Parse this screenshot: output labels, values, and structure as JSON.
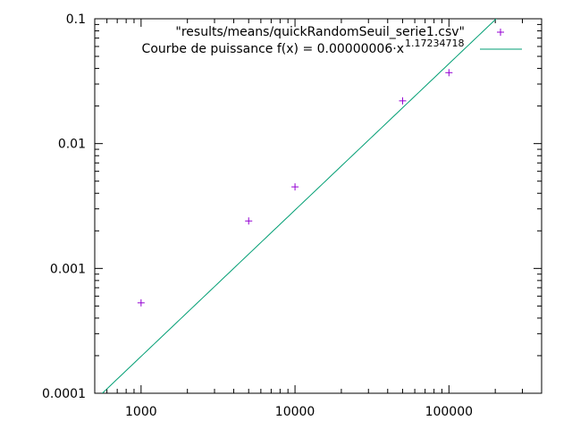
{
  "chart_data": {
    "type": "scatter",
    "title": "",
    "xlabel": "",
    "ylabel": "",
    "x_scale": "log",
    "y_scale": "log",
    "xlim": [
      500,
      400000
    ],
    "ylim": [
      0.0001,
      0.1
    ],
    "grid": false,
    "legend_position": "top-right",
    "x_ticks": [
      {
        "value": 1000,
        "label": "1000"
      },
      {
        "value": 10000,
        "label": "10000"
      },
      {
        "value": 100000,
        "label": "100000"
      }
    ],
    "y_ticks": [
      {
        "value": 0.0001,
        "label": "0.0001"
      },
      {
        "value": 0.001,
        "label": "0.001"
      },
      {
        "value": 0.01,
        "label": "0.01"
      },
      {
        "value": 0.1,
        "label": "0.1"
      }
    ],
    "series": [
      {
        "name": "\"results/means/quickRandomSeuil_serie1.csv\"",
        "kind": "points",
        "marker": "+",
        "color": "#9400d3",
        "x": [
          1000,
          5000,
          10000,
          50000,
          100000
        ],
        "y": [
          0.00053,
          0.0024,
          0.0045,
          0.022,
          0.037
        ]
      },
      {
        "name": "Courbe de puissance f(x) = 0.00000006·x",
        "name_superscript": "1.17234718",
        "kind": "fit",
        "color": "#009e73",
        "coefficient": 6e-08,
        "exponent": 1.17234718
      }
    ]
  }
}
